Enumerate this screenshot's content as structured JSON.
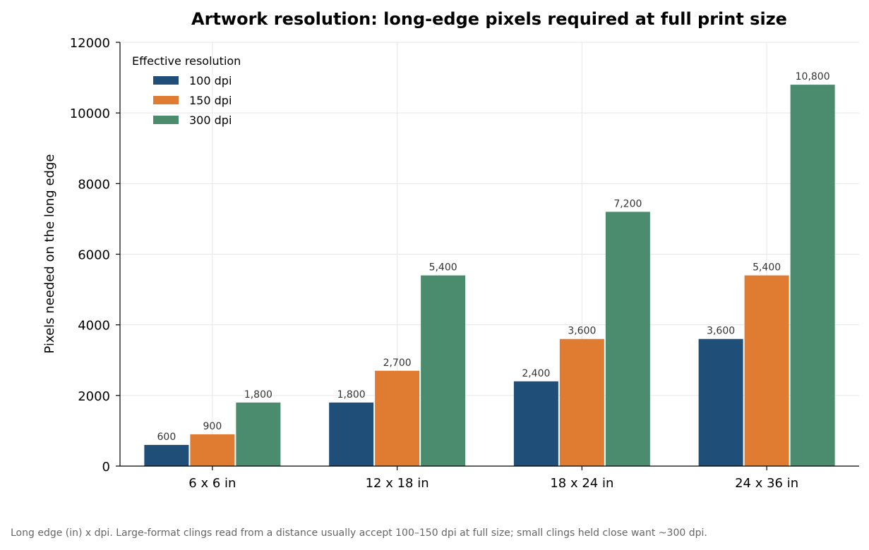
{
  "chart_data": {
    "type": "bar",
    "title": "Artwork resolution: long-edge pixels required at full print size",
    "xlabel": "",
    "ylabel": "Pixels needed on the long edge",
    "categories": [
      "6 x 6 in",
      "12 x 18 in",
      "18 x 24 in",
      "24 x 36 in"
    ],
    "ylim": [
      0,
      12000
    ],
    "yticks": [
      0,
      2000,
      4000,
      6000,
      8000,
      10000,
      12000
    ],
    "grid": true,
    "legend": {
      "title": "Effective resolution",
      "placement": "top-left"
    },
    "series": [
      {
        "name": "100 dpi",
        "color": "#1f4e79",
        "values": [
          600,
          1800,
          2400,
          3600
        ],
        "labels": [
          "600",
          "1,800",
          "2,400",
          "3,600"
        ]
      },
      {
        "name": "150 dpi",
        "color": "#e07b32",
        "values": [
          900,
          2700,
          3600,
          5400
        ],
        "labels": [
          "900",
          "2,700",
          "3,600",
          "5,400"
        ]
      },
      {
        "name": "300 dpi",
        "color": "#4c8c6e",
        "values": [
          1800,
          5400,
          7200,
          10800
        ],
        "labels": [
          "1,800",
          "5,400",
          "7,200",
          "10,800"
        ]
      }
    ]
  },
  "footnote": "Long edge (in) x dpi. Large-format clings read from a distance usually accept 100–150 dpi at full size; small clings held close want ~300 dpi."
}
